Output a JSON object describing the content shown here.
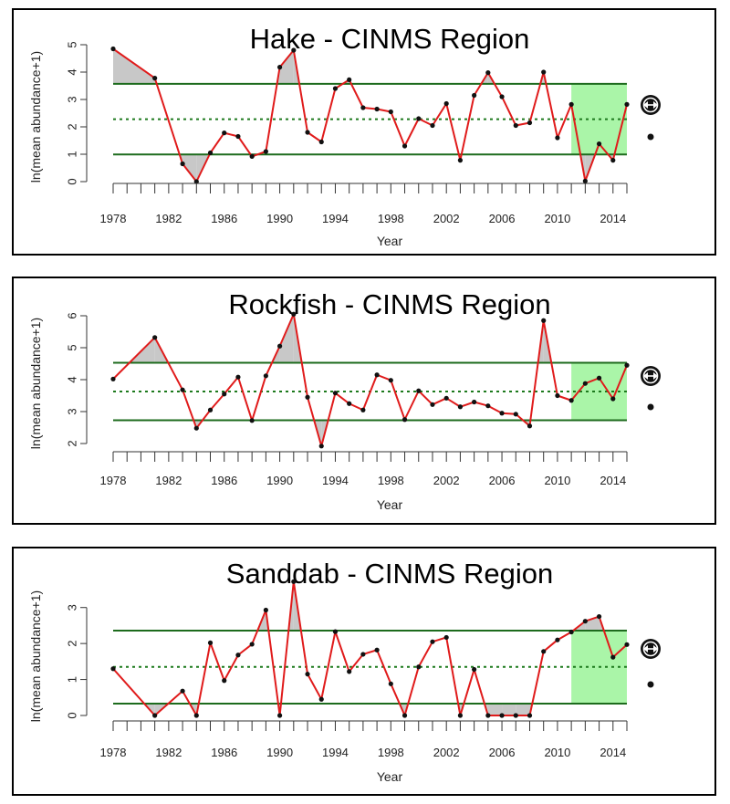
{
  "chart_data": [
    {
      "type": "line",
      "title": "Hake - CINMS Region",
      "xlabel": "Year",
      "ylabel": "ln(mean abundance+1)",
      "xlim": [
        1978,
        2015
      ],
      "ylim": [
        0,
        5
      ],
      "xticks": [
        "1978",
        "1982",
        "1986",
        "1990",
        "1994",
        "1998",
        "2002",
        "2006",
        "2010",
        "2014"
      ],
      "yticks": [
        "0",
        "1",
        "2",
        "3",
        "4",
        "5"
      ],
      "mean": 2.28,
      "upper": 3.57,
      "lower": 0.99,
      "recent_window": [
        2011,
        2015
      ],
      "x": [
        1978,
        1981,
        1983,
        1984,
        1985,
        1986,
        1987,
        1988,
        1989,
        1990,
        1991,
        1992,
        1993,
        1994,
        1995,
        1996,
        1997,
        1998,
        1999,
        2000,
        2001,
        2002,
        2003,
        2004,
        2005,
        2006,
        2007,
        2008,
        2009,
        2010,
        2011,
        2012,
        2013,
        2014,
        2015
      ],
      "y": [
        4.85,
        3.78,
        0.65,
        0.0,
        1.05,
        1.78,
        1.65,
        0.92,
        1.1,
        4.18,
        4.8,
        1.8,
        1.45,
        3.4,
        3.72,
        2.7,
        2.65,
        2.55,
        1.3,
        2.3,
        2.05,
        2.85,
        0.78,
        3.15,
        3.98,
        3.1,
        2.05,
        2.15,
        4.0,
        1.6,
        2.82,
        0.02,
        1.38,
        0.78,
        2.82
      ],
      "trend_symbol": "circled-double-arrow",
      "trend_dot": "dot"
    },
    {
      "type": "line",
      "title": "Rockfish - CINMS Region",
      "xlabel": "Year",
      "ylabel": "ln(mean abundance+1)",
      "xlim": [
        1978,
        2015
      ],
      "ylim": [
        2,
        6
      ],
      "xticks": [
        "1978",
        "1982",
        "1986",
        "1990",
        "1994",
        "1998",
        "2002",
        "2006",
        "2010",
        "2014"
      ],
      "yticks": [
        "2",
        "3",
        "4",
        "5",
        "6"
      ],
      "mean": 3.63,
      "upper": 4.53,
      "lower": 2.73,
      "recent_window": [
        2011,
        2015
      ],
      "x": [
        1978,
        1981,
        1983,
        1984,
        1985,
        1986,
        1987,
        1988,
        1989,
        1990,
        1991,
        1992,
        1993,
        1994,
        1995,
        1996,
        1997,
        1998,
        1999,
        2000,
        2001,
        2002,
        2003,
        2004,
        2005,
        2006,
        2007,
        2008,
        2009,
        2010,
        2011,
        2012,
        2013,
        2014,
        2015
      ],
      "y": [
        4.02,
        5.32,
        3.68,
        2.48,
        3.05,
        3.55,
        4.08,
        2.72,
        4.12,
        5.05,
        6.05,
        3.45,
        1.92,
        3.58,
        3.25,
        3.05,
        4.15,
        3.98,
        2.75,
        3.65,
        3.22,
        3.42,
        3.15,
        3.3,
        3.18,
        2.95,
        2.92,
        2.55,
        5.85,
        3.5,
        3.35,
        3.88,
        4.05,
        3.4,
        4.45
      ],
      "trend_symbol": "circled-double-arrow",
      "trend_dot": "dot"
    },
    {
      "type": "line",
      "title": "Sanddab - CINMS Region",
      "xlabel": "Year",
      "ylabel": "ln(mean abundance+1)",
      "xlim": [
        1978,
        2015
      ],
      "ylim": [
        0,
        3.5
      ],
      "xticks": [
        "1978",
        "1982",
        "1986",
        "1990",
        "1994",
        "1998",
        "2002",
        "2006",
        "2010",
        "2014"
      ],
      "yticks": [
        "0",
        "1",
        "2",
        "3"
      ],
      "mean": 1.35,
      "upper": 2.36,
      "lower": 0.33,
      "recent_window": [
        2011,
        2015
      ],
      "x": [
        1978,
        1981,
        1983,
        1984,
        1985,
        1986,
        1987,
        1988,
        1989,
        1990,
        1991,
        1992,
        1993,
        1994,
        1995,
        1996,
        1997,
        1998,
        1999,
        2000,
        2001,
        2002,
        2003,
        2004,
        2005,
        2006,
        2007,
        2008,
        2009,
        2010,
        2011,
        2012,
        2013,
        2014,
        2015
      ],
      "y": [
        1.3,
        0.0,
        0.68,
        0.0,
        2.02,
        0.97,
        1.68,
        1.98,
        2.93,
        0.0,
        3.72,
        1.15,
        0.45,
        2.33,
        1.22,
        1.7,
        1.82,
        0.88,
        0.0,
        1.35,
        2.05,
        2.17,
        0.0,
        1.28,
        0.0,
        0.0,
        0.0,
        0.0,
        1.78,
        2.1,
        2.32,
        2.62,
        2.75,
        1.62,
        1.97
      ],
      "trend_symbol": "circled-double-arrow",
      "trend_dot": "dot"
    }
  ],
  "colors": {
    "series": "#e01b1b",
    "points": "#111111",
    "bands": "#1d6b1d",
    "mean": "#1d7a1d",
    "recent_window": "#aaf5a8",
    "exceedance": "#c8c8c8",
    "axis": "#333333"
  }
}
